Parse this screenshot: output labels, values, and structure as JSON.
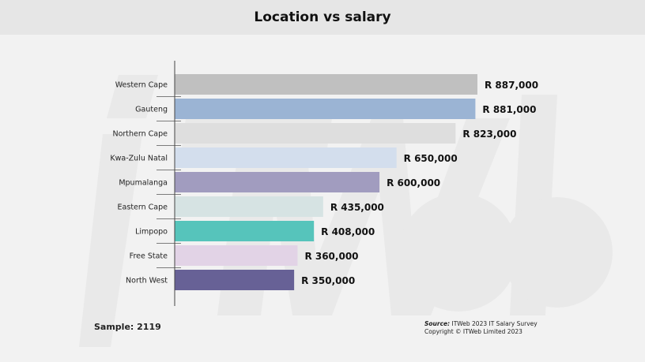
{
  "chart_data": {
    "type": "bar",
    "orientation": "horizontal",
    "title": "Location vs salary",
    "categories": [
      "Western Cape",
      "Gauteng",
      "Northern Cape",
      "Kwa-Zulu Natal",
      "Mpumalanga",
      "Eastern Cape",
      "Limpopo",
      "Free State",
      "North West"
    ],
    "values": [
      887000,
      881000,
      823000,
      650000,
      600000,
      435000,
      408000,
      360000,
      350000
    ],
    "data_labels": [
      "R 887,000",
      "R 881,000",
      "R 823,000",
      "R 650,000",
      "R 600,000",
      "R 435,000",
      "R 408,000",
      "R 360,000",
      "R 350,000"
    ],
    "colors": [
      "#c0c0c0",
      "#9bb4d4",
      "#dedede",
      "#d3deed",
      "#a19cbf",
      "#d6e3e3",
      "#56c4bb",
      "#e2d3e6",
      "#676196"
    ],
    "grid": false,
    "legend": "none"
  },
  "footer": {
    "sample": "Sample: 2119",
    "source_label": "Source:",
    "source_text": " ITWeb 2023 IT Salary Survey",
    "copyright": "Copyright © ITWeb Limited 2023"
  },
  "watermark": "iTWeb"
}
